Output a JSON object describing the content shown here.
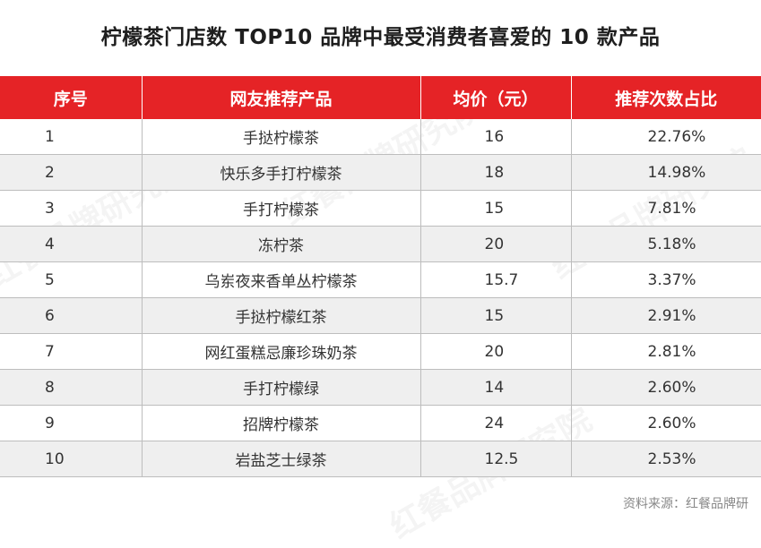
{
  "title": "柠檬茶门店数 TOP10 品牌中最受消费者喜爱的 10 款产品",
  "table": {
    "headers": [
      "序号",
      "网友推荐产品",
      "均价（元）",
      "推荐次数占比"
    ],
    "rows": [
      {
        "rank": "1",
        "product": "手挞柠檬茶",
        "price": "16",
        "share": "22.76%"
      },
      {
        "rank": "2",
        "product": "快乐多手打柠檬茶",
        "price": "18",
        "share": "14.98%"
      },
      {
        "rank": "3",
        "product": "手打柠檬茶",
        "price": "15",
        "share": "7.81%"
      },
      {
        "rank": "4",
        "product": "冻柠茶",
        "price": "20",
        "share": "5.18%"
      },
      {
        "rank": "5",
        "product": "乌岽夜来香单丛柠檬茶",
        "price": "15.7",
        "share": "3.37%"
      },
      {
        "rank": "6",
        "product": "手挞柠檬红茶",
        "price": "15",
        "share": "2.91%"
      },
      {
        "rank": "7",
        "product": "网红蛋糕忌廉珍珠奶茶",
        "price": "20",
        "share": "2.81%"
      },
      {
        "rank": "8",
        "product": "手打柠檬绿",
        "price": "14",
        "share": "2.60%"
      },
      {
        "rank": "9",
        "product": "招牌柠檬茶",
        "price": "24",
        "share": "2.60%"
      },
      {
        "rank": "10",
        "product": "岩盐芝士绿茶",
        "price": "12.5",
        "share": "2.53%"
      }
    ]
  },
  "source": "资料来源：红餐品牌研",
  "watermark": "红餐品牌研究院",
  "colors": {
    "header_bg": "#e52326",
    "alt_row": "#efefef"
  }
}
